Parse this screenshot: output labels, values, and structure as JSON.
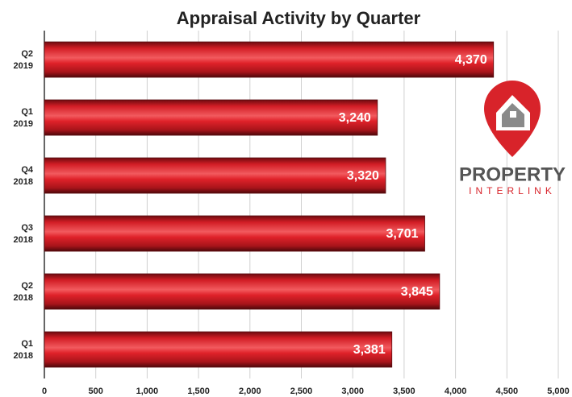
{
  "chart_data": {
    "type": "bar",
    "orientation": "horizontal",
    "title": "Appraisal Activity by Quarter",
    "categories": [
      "Q2 2019",
      "Q1 2019",
      "Q4 2018",
      "Q3 2018",
      "Q2 2018",
      "Q1 2018"
    ],
    "values": [
      4370,
      3240,
      3320,
      3701,
      3845,
      3381
    ],
    "value_labels": [
      "4,370",
      "3,240",
      "3,320",
      "3,701",
      "3,845",
      "3,381"
    ],
    "color": "#e0222a",
    "xlim": [
      0,
      5000
    ],
    "xticks": [
      0,
      500,
      {
        "value": 1000,
        "label": "1,000"
      },
      {
        "value": 1500,
        "label": "1,500"
      },
      {
        "value": 2000,
        "label": "2,000"
      },
      {
        "value": 2500,
        "label": "2,500"
      },
      {
        "value": 3000,
        "label": "3,000"
      },
      {
        "value": 3500,
        "label": "3,500"
      },
      {
        "value": 4000,
        "label": "4,000"
      },
      {
        "value": 4500,
        "label": "4,500"
      },
      {
        "value": 5000,
        "label": "5,000"
      }
    ],
    "grid": true
  },
  "logo": {
    "line1": "PROPERTY",
    "line2": "INTERLINK"
  }
}
